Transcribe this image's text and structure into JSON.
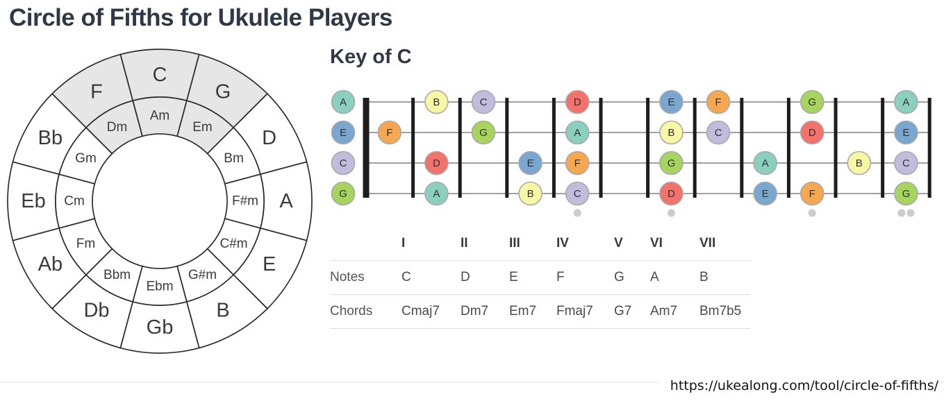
{
  "page": {
    "title": "Circle of Fifths for Ukulele Players",
    "url": "https://ukealong.com/tool/circle-of-fifths/"
  },
  "circle": {
    "majors": [
      "C",
      "G",
      "D",
      "A",
      "E",
      "B",
      "Gb",
      "Db",
      "Ab",
      "Eb",
      "Bb",
      "F"
    ],
    "minors": [
      "Am",
      "Em",
      "Bm",
      "F#m",
      "C#m",
      "G#m",
      "Ebm",
      "Bbm",
      "Fm",
      "Cm",
      "Gm",
      "Dm"
    ],
    "highlighted_majors": [
      "C",
      "G",
      "F"
    ],
    "highlighted_minors": [
      "Am",
      "Em",
      "Dm"
    ],
    "highlight_color": "#e6e6e6",
    "segment_fill": "#ffffff",
    "stroke_color": "#2b2b2b",
    "label_color": "#3a3a3a"
  },
  "key_panel": {
    "title": "Key of C"
  },
  "fretboard": {
    "strings": [
      "A",
      "E",
      "C",
      "G"
    ],
    "fret_count": 12,
    "single_marker_frets": [
      5,
      7,
      10
    ],
    "double_marker_frets": [
      12
    ],
    "note_colors": {
      "A": "#8bd0bf",
      "B": "#f7f7a5",
      "C": "#c1bcdc",
      "D": "#f3736c",
      "E": "#7aa7cf",
      "F": "#f6a851",
      "G": "#a7d45f"
    },
    "positions": {
      "A": [
        [
          0,
          "A"
        ],
        [
          2,
          "B"
        ],
        [
          3,
          "C"
        ],
        [
          5,
          "D"
        ],
        [
          7,
          "E"
        ],
        [
          8,
          "F"
        ],
        [
          10,
          "G"
        ],
        [
          12,
          "A"
        ]
      ],
      "E": [
        [
          0,
          "E"
        ],
        [
          1,
          "F"
        ],
        [
          3,
          "G"
        ],
        [
          5,
          "A"
        ],
        [
          7,
          "B"
        ],
        [
          8,
          "C"
        ],
        [
          10,
          "D"
        ],
        [
          12,
          "E"
        ]
      ],
      "C": [
        [
          0,
          "C"
        ],
        [
          2,
          "D"
        ],
        [
          4,
          "E"
        ],
        [
          5,
          "F"
        ],
        [
          7,
          "G"
        ],
        [
          9,
          "A"
        ],
        [
          11,
          "B"
        ],
        [
          12,
          "C"
        ]
      ],
      "G": [
        [
          0,
          "G"
        ],
        [
          2,
          "A"
        ],
        [
          4,
          "B"
        ],
        [
          5,
          "C"
        ],
        [
          7,
          "D"
        ],
        [
          9,
          "E"
        ],
        [
          10,
          "F"
        ],
        [
          12,
          "G"
        ]
      ]
    }
  },
  "table": {
    "degree_headers": [
      "I",
      "II",
      "III",
      "IV",
      "V",
      "VI",
      "VII"
    ],
    "rows": [
      {
        "label": "Notes",
        "values": [
          "C",
          "D",
          "E",
          "F",
          "G",
          "A",
          "B"
        ]
      },
      {
        "label": "Chords",
        "values": [
          "Cmaj7",
          "Dm7",
          "Em7",
          "Fmaj7",
          "G7",
          "Am7",
          "Bm7b5"
        ]
      }
    ]
  }
}
